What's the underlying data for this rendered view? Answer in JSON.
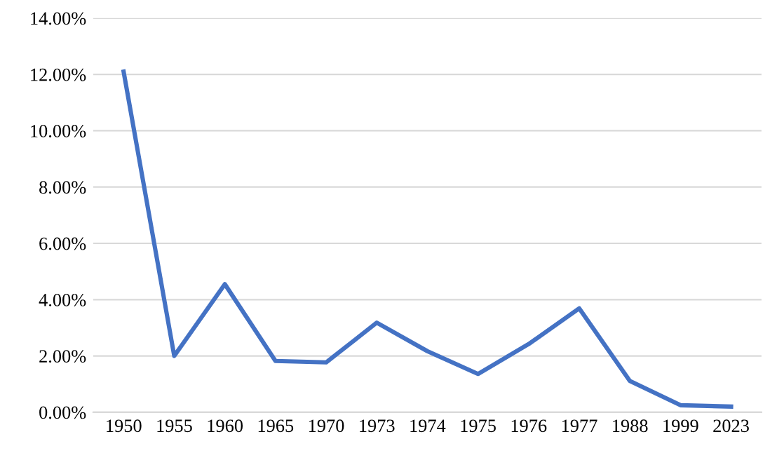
{
  "chart_data": {
    "type": "line",
    "categories": [
      "1950",
      "1955",
      "1960",
      "1965",
      "1970",
      "1973",
      "1974",
      "1975",
      "1976",
      "1977",
      "1988",
      "1999",
      "2023"
    ],
    "series": [
      {
        "color": "#4472c4",
        "values": [
          12.1,
          2.0,
          4.55,
          1.82,
          1.77,
          3.18,
          2.17,
          1.36,
          2.42,
          3.69,
          1.11,
          0.25,
          0.2
        ]
      }
    ],
    "ylim": [
      0,
      14
    ],
    "yticks": [
      {
        "value": 0,
        "label": "0.00%"
      },
      {
        "value": 2,
        "label": "2.00%"
      },
      {
        "value": 4,
        "label": "4.00%"
      },
      {
        "value": 6,
        "label": "6.00%"
      },
      {
        "value": 8,
        "label": "8.00%"
      },
      {
        "value": 10,
        "label": "10.00%"
      },
      {
        "value": 12,
        "label": "12.00%"
      },
      {
        "value": 14,
        "label": "14.00%"
      }
    ],
    "grid": "y",
    "marker": "none",
    "line_style": "solid",
    "legend": false
  }
}
